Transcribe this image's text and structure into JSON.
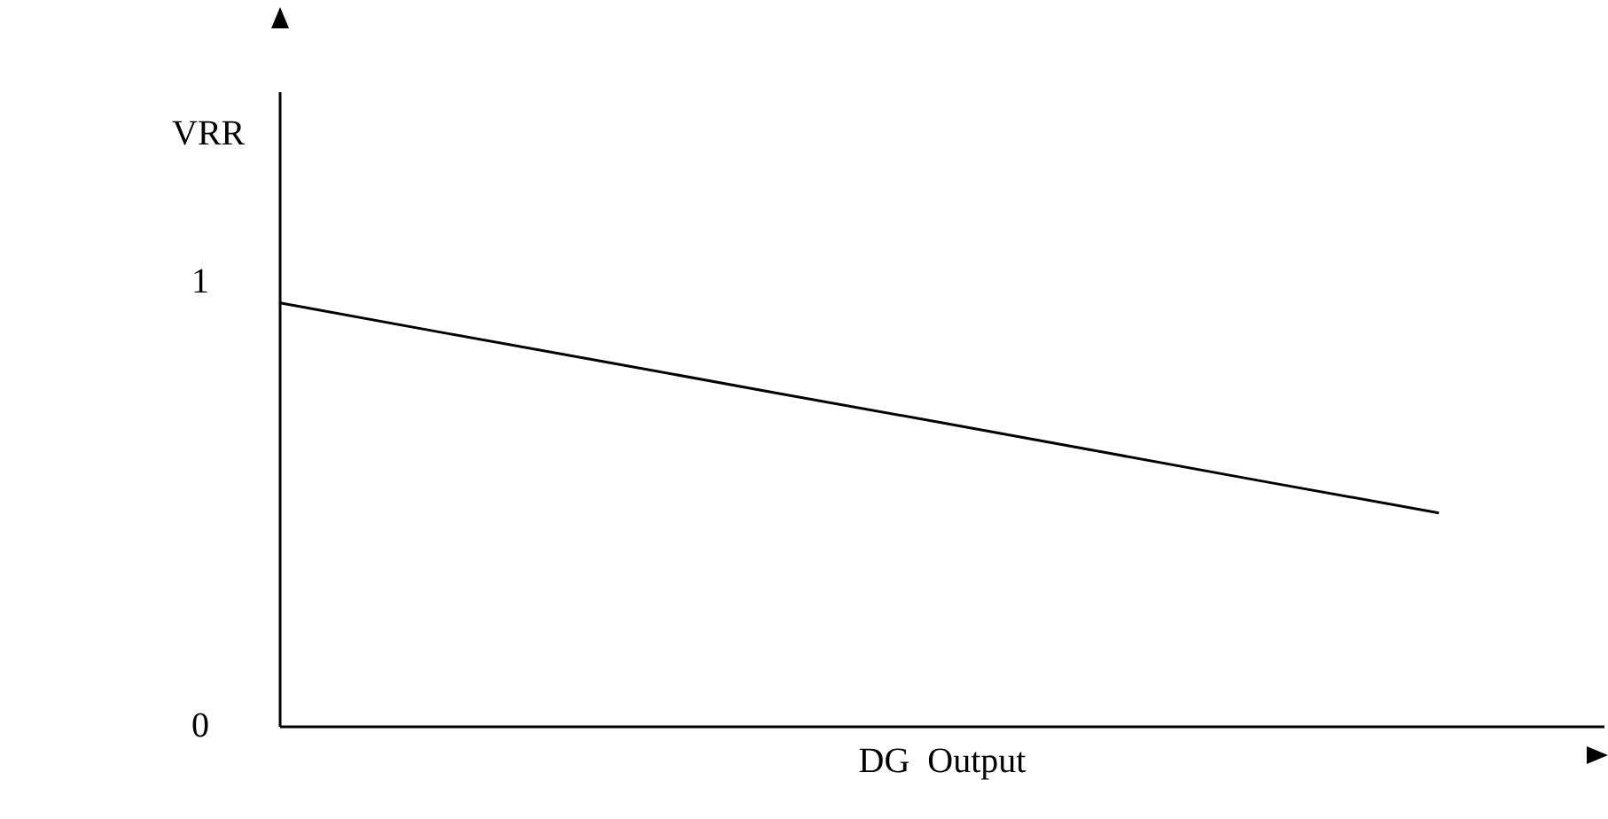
{
  "chart_data": {
    "type": "line",
    "xlabel": "DG  Output",
    "ylabel": "VRR",
    "categories": [
      null,
      null,
      null,
      null,
      null,
      null,
      null,
      null,
      null
    ],
    "series": [
      {
        "color": "#000000",
        "values": [
          0.955,
          0.887,
          0.82,
          0.752,
          0.685,
          0.617,
          0.549,
          0.482,
          null
        ]
      }
    ],
    "ylim": [
      0,
      1.43
    ],
    "yticks": [
      0,
      1
    ],
    "grid": false,
    "legend": false,
    "marker": "none",
    "line_style": "solid"
  }
}
